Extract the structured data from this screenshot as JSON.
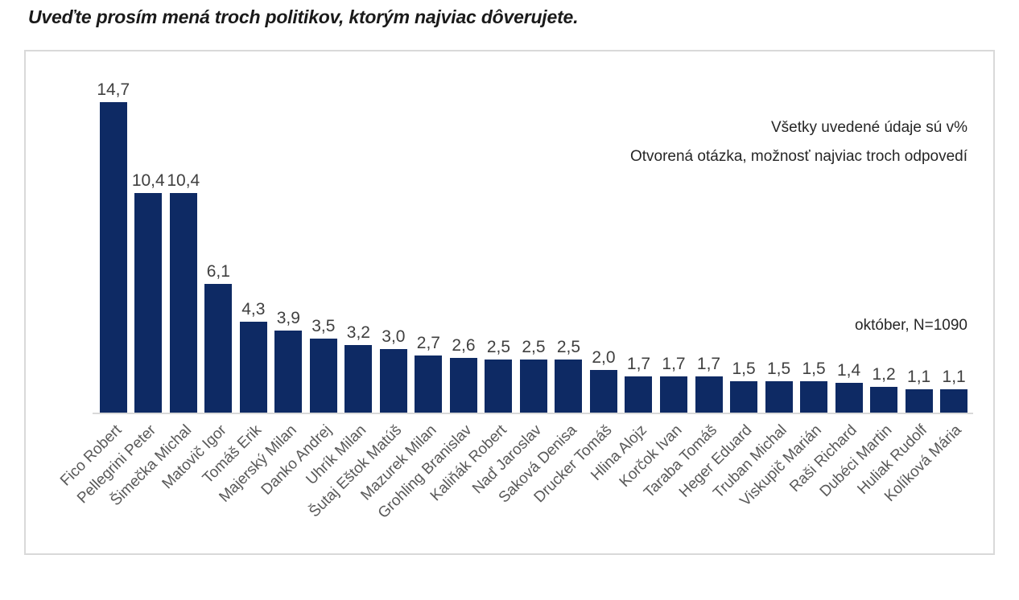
{
  "page": {
    "title": "Uveďte prosím mená troch politikov, ktorým najviac dôverujete."
  },
  "chart_data": {
    "type": "bar",
    "title": "Uveďte prosím mená troch politikov, ktorým najviac dôverujete.",
    "categories": [
      "Fico Robert",
      "Pellegrini Peter",
      "Šimečka Michal",
      "Matovič Igor",
      "Tomáš Erik",
      "Majerský Milan",
      "Danko Andrej",
      "Uhrík Milan",
      "Šutaj Eštok Matúš",
      "Mazurek Milan",
      "Grohling Branislav",
      "Kaliňák Robert",
      "Naď Jaroslav",
      "Saková Denisa",
      "Drucker Tomáš",
      "Hlina Alojz",
      "Korčok Ivan",
      "Taraba Tomáš",
      "Heger Eduard",
      "Truban Michal",
      "Viskupič Marián",
      "Raši Richard",
      "Dubéci Martin",
      "Huliak Rudolf",
      "Kolíková Mária"
    ],
    "values": [
      14.7,
      10.4,
      10.4,
      6.1,
      4.3,
      3.9,
      3.5,
      3.2,
      3.0,
      2.7,
      2.6,
      2.5,
      2.5,
      2.5,
      2.0,
      1.7,
      1.7,
      1.7,
      1.5,
      1.5,
      1.5,
      1.4,
      1.2,
      1.1,
      1.1
    ],
    "value_labels": [
      "14,7",
      "10,4",
      "10,4",
      "6,1",
      "4,3",
      "3,9",
      "3,5",
      "3,2",
      "3,0",
      "2,7",
      "2,6",
      "2,5",
      "2,5",
      "2,5",
      "2,0",
      "1,7",
      "1,7",
      "1,7",
      "1,5",
      "1,5",
      "1,5",
      "1,4",
      "1,2",
      "1,1",
      "1,1"
    ],
    "annotations": [
      "Všetky uvedené údaje sú v%",
      "Otvorená otázka, možnosť najviac troch odpovedí"
    ],
    "sample_note": "október, N=1090",
    "bar_color": "#0E2A64",
    "xlabel": "",
    "ylabel": "",
    "ylim": [
      0,
      15
    ],
    "grid": false,
    "legend": "none",
    "axis_line_color": "#d9d9d9",
    "value_label_color": "#404040",
    "category_label_color": "#595959"
  }
}
